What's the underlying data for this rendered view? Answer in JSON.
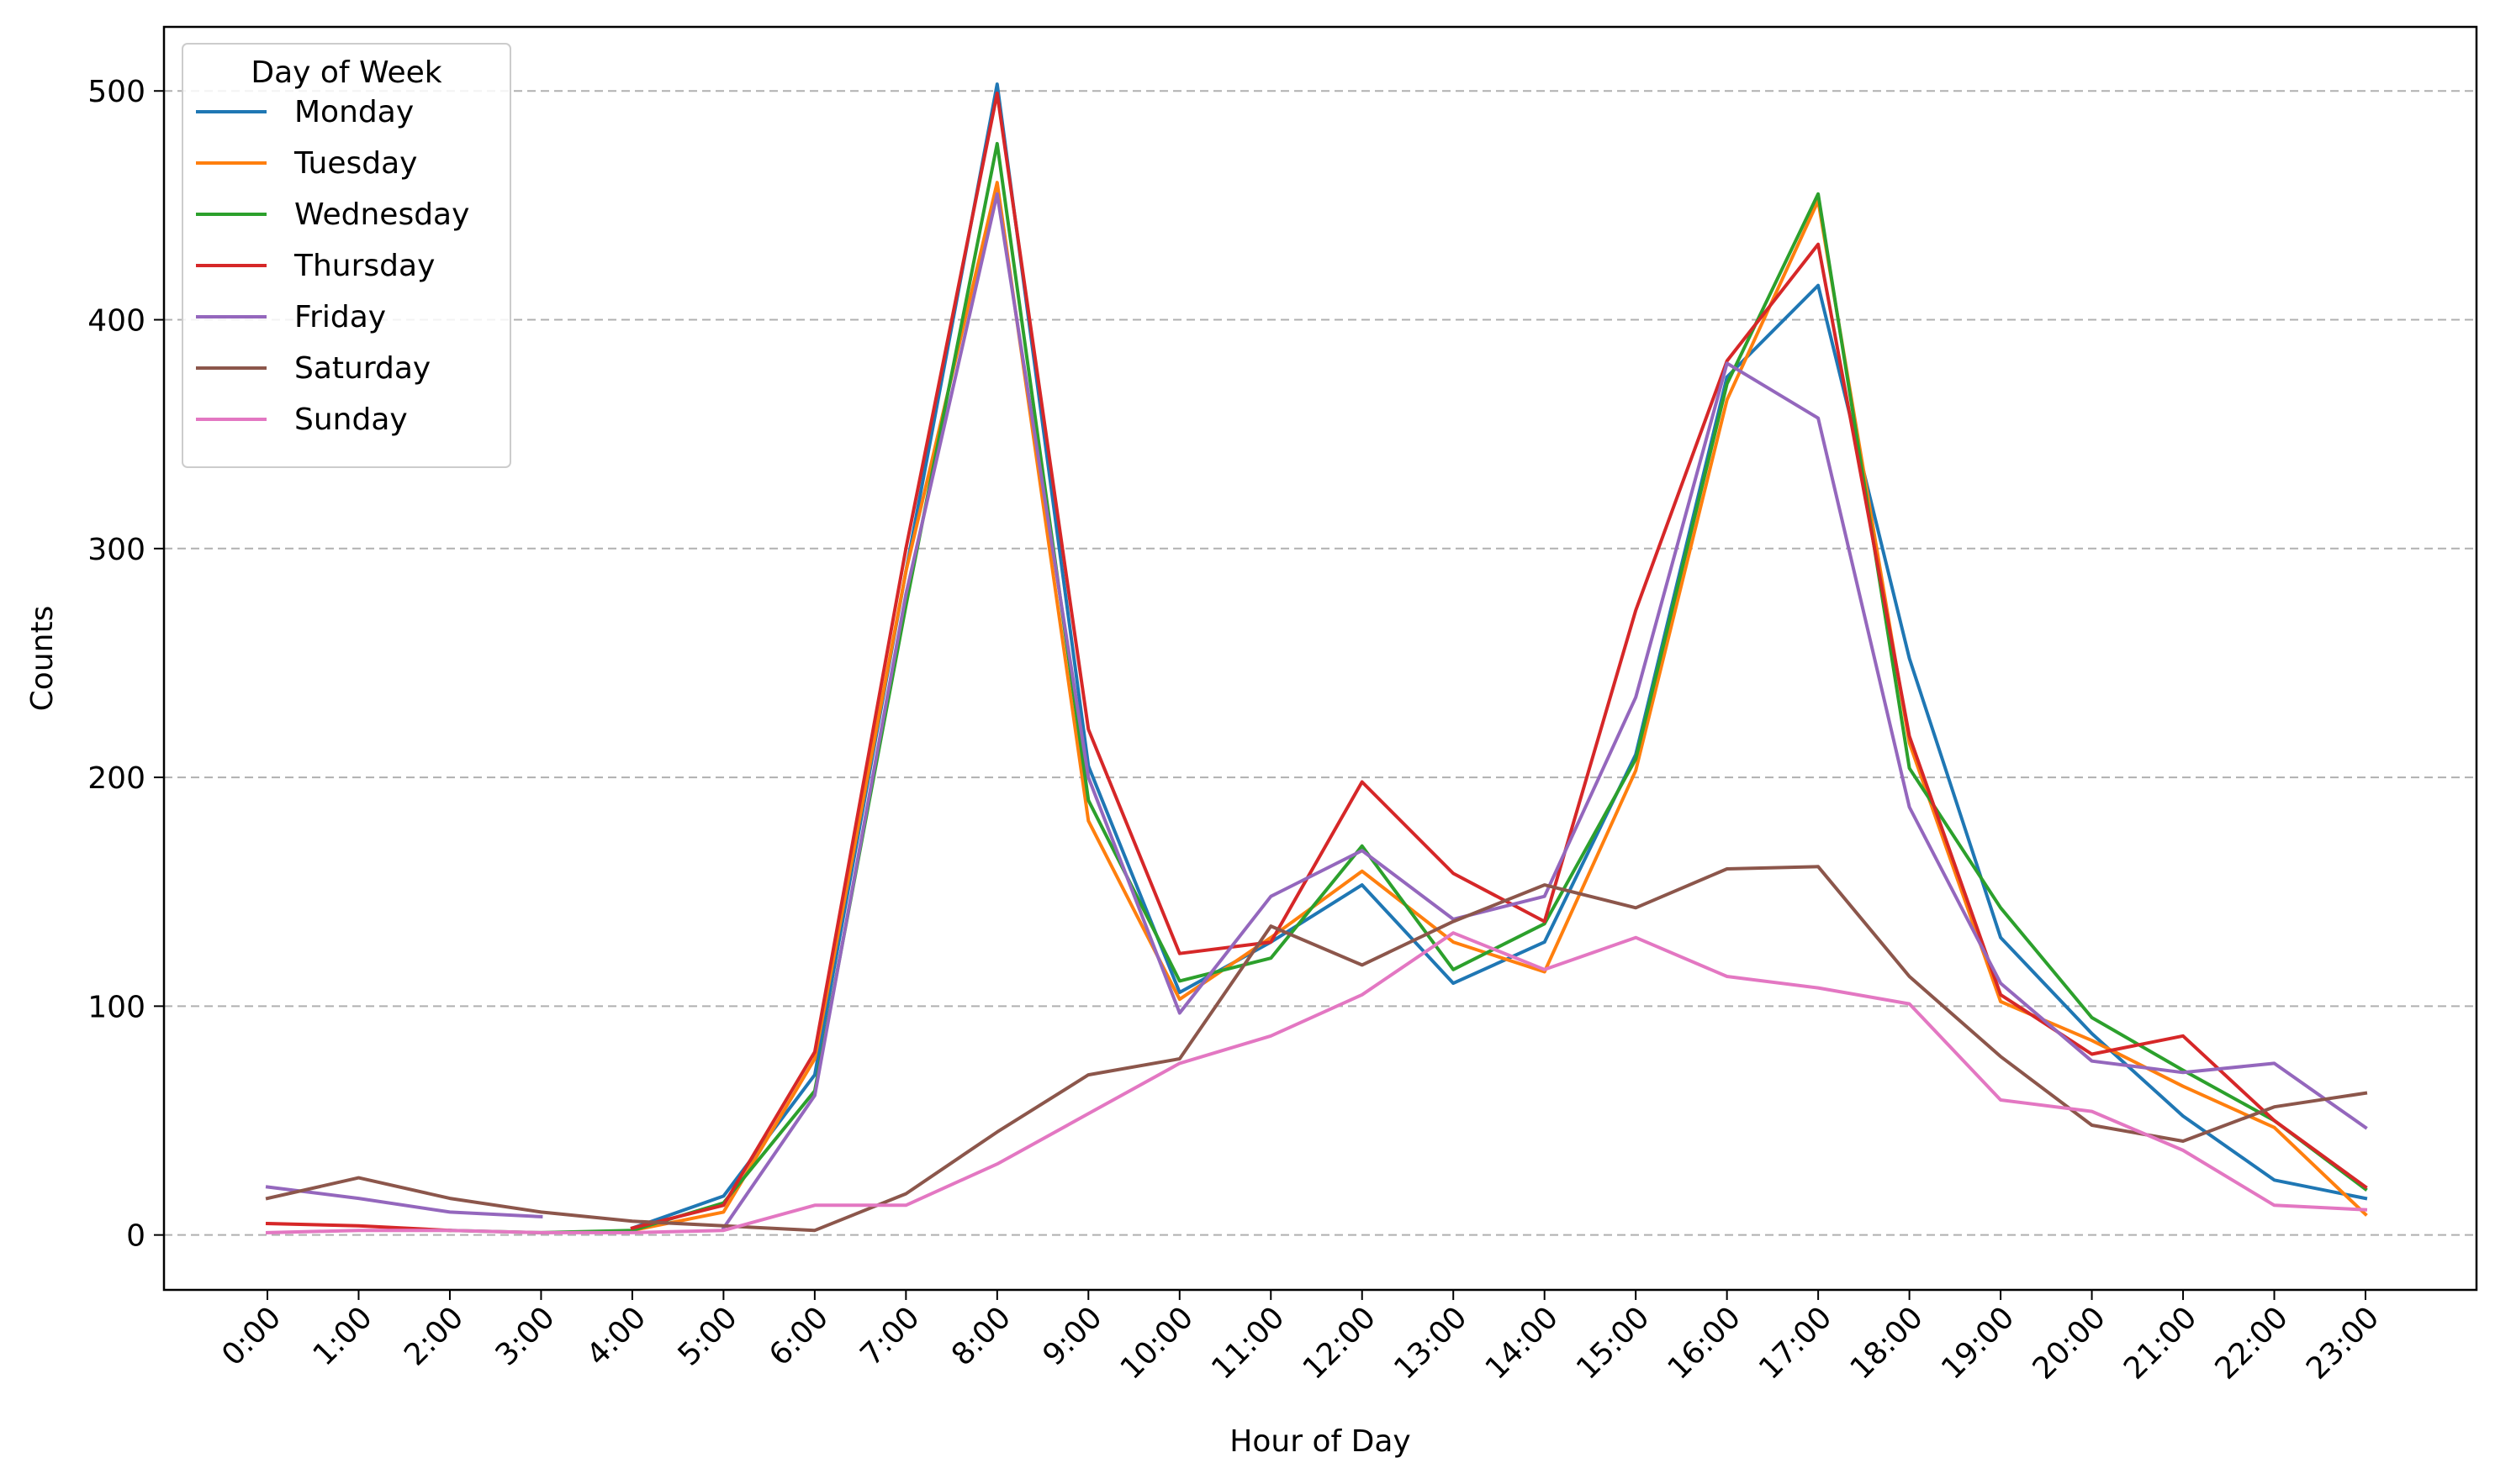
{
  "chart_data": {
    "type": "line",
    "title": "",
    "xlabel": "Hour of Day",
    "ylabel": "Counts",
    "ylim": [
      -24,
      528
    ],
    "yticks": [
      0,
      100,
      200,
      300,
      400,
      500
    ],
    "grid": "horizontal dashed",
    "legend": {
      "title": "Day of Week",
      "placement": "top-left"
    },
    "x": [
      "0:00",
      "1:00",
      "2:00",
      "3:00",
      "4:00",
      "5:00",
      "6:00",
      "7:00",
      "8:00",
      "9:00",
      "10:00",
      "11:00",
      "12:00",
      "13:00",
      "14:00",
      "15:00",
      "16:00",
      "17:00",
      "18:00",
      "19:00",
      "20:00",
      "21:00",
      "22:00",
      "23:00"
    ],
    "series": [
      {
        "name": "Monday",
        "color": "#1f77b4",
        "values": [
          null,
          null,
          null,
          null,
          3,
          17,
          70,
          290,
          503,
          205,
          106,
          128,
          153,
          110,
          128,
          210,
          375,
          415,
          252,
          130,
          88,
          52,
          24,
          16
        ]
      },
      {
        "name": "Tuesday",
        "color": "#ff7f0e",
        "values": [
          null,
          null,
          null,
          null,
          2,
          10,
          77,
          290,
          460,
          181,
          103,
          130,
          159,
          128,
          115,
          203,
          365,
          452,
          215,
          102,
          85,
          65,
          47,
          9
        ]
      },
      {
        "name": "Wednesday",
        "color": "#2ca02c",
        "values": [
          null,
          null,
          2,
          1,
          2,
          14,
          63,
          275,
          477,
          190,
          111,
          121,
          170,
          116,
          136,
          208,
          372,
          455,
          204,
          143,
          95,
          72,
          50,
          20
        ]
      },
      {
        "name": "Thursday",
        "color": "#d62728",
        "values": [
          5,
          4,
          2,
          null,
          3,
          13,
          80,
          300,
          499,
          221,
          123,
          128,
          198,
          158,
          137,
          273,
          382,
          433,
          218,
          105,
          79,
          87,
          50,
          21
        ]
      },
      {
        "name": "Friday",
        "color": "#9467bd",
        "values": [
          21,
          16,
          10,
          8,
          null,
          3,
          61,
          280,
          455,
          200,
          97,
          148,
          168,
          138,
          148,
          235,
          381,
          357,
          187,
          110,
          76,
          71,
          75,
          47
        ]
      },
      {
        "name": "Saturday",
        "color": "#8c564b",
        "values": [
          16,
          25,
          16,
          10,
          6,
          4,
          2,
          18,
          45,
          70,
          77,
          135,
          118,
          137,
          153,
          143,
          160,
          161,
          113,
          78,
          48,
          41,
          56,
          62
        ]
      },
      {
        "name": "Sunday",
        "color": "#e377c2",
        "values": [
          1,
          2,
          2,
          1,
          1,
          2,
          13,
          13,
          31,
          53,
          75,
          87,
          105,
          132,
          116,
          130,
          113,
          108,
          101,
          59,
          54,
          37,
          13,
          11
        ]
      }
    ]
  }
}
